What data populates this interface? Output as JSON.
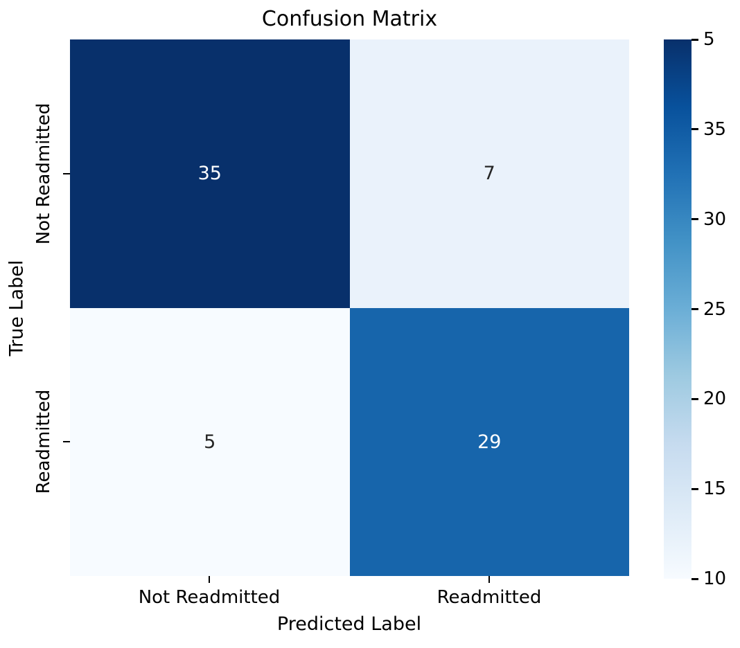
{
  "figure": {
    "background": "#ffffff",
    "axis_text_color": "#000000"
  },
  "chart_data": {
    "type": "heatmap",
    "title": "Confusion Matrix",
    "xlabel": "Predicted Label",
    "ylabel": "True Label",
    "x_categories": [
      "Not Readmitted",
      "Readmitted"
    ],
    "y_categories": [
      "Not Readmitted",
      "Readmitted"
    ],
    "matrix": [
      [
        35,
        7
      ],
      [
        5,
        29
      ]
    ],
    "cells": [
      {
        "true_label": "Not Readmitted",
        "predicted_label": "Not Readmitted",
        "value": "35",
        "bg": "#08306b",
        "text_color": "#ffffff"
      },
      {
        "true_label": "Not Readmitted",
        "predicted_label": "Readmitted",
        "value": "7",
        "bg": "#eaf2fb",
        "text_color": "#262626"
      },
      {
        "true_label": "Readmitted",
        "predicted_label": "Not Readmitted",
        "value": "5",
        "bg": "#f7fbff",
        "text_color": "#262626"
      },
      {
        "true_label": "Readmitted",
        "predicted_label": "Readmitted",
        "value": "29",
        "bg": "#1765ab",
        "text_color": "#ffffff"
      }
    ],
    "colormap": "Blues",
    "vmin": 5,
    "vmax": 35,
    "grid": false,
    "colorbar": {
      "position": "right",
      "ticks": [
        "35",
        "30",
        "25",
        "20",
        "15",
        "10",
        "5"
      ],
      "gradient_stops": [
        {
          "pos": 0,
          "color": "#f7fbff"
        },
        {
          "pos": 12.5,
          "color": "#deebf7"
        },
        {
          "pos": 25,
          "color": "#c6dbef"
        },
        {
          "pos": 37.5,
          "color": "#9ecae1"
        },
        {
          "pos": 50,
          "color": "#6baed6"
        },
        {
          "pos": 62.5,
          "color": "#4292c6"
        },
        {
          "pos": 75,
          "color": "#2171b5"
        },
        {
          "pos": 87.5,
          "color": "#08519c"
        },
        {
          "pos": 100,
          "color": "#08306b"
        }
      ]
    }
  }
}
